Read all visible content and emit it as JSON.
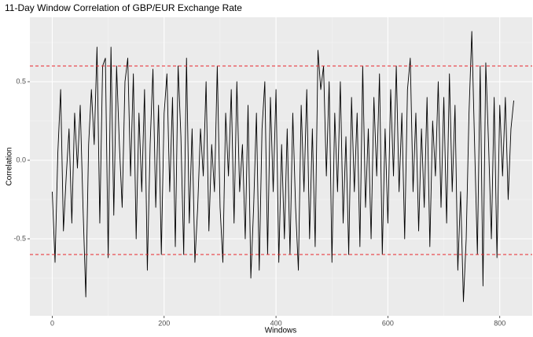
{
  "chart_data": {
    "type": "line",
    "title": "11-Day Window Correlation of GBP/EUR Exchange Rate",
    "x_label": "Windows",
    "y_label": "Correlation",
    "x": [
      0,
      5,
      10,
      15,
      20,
      25,
      30,
      35,
      40,
      45,
      50,
      55,
      60,
      65,
      70,
      75,
      80,
      85,
      90,
      95,
      100,
      105,
      110,
      115,
      120,
      125,
      130,
      135,
      140,
      145,
      150,
      155,
      160,
      165,
      170,
      175,
      180,
      185,
      190,
      195,
      200,
      205,
      210,
      215,
      220,
      225,
      230,
      235,
      240,
      245,
      250,
      255,
      260,
      265,
      270,
      275,
      280,
      285,
      290,
      295,
      300,
      305,
      310,
      315,
      320,
      325,
      330,
      335,
      340,
      345,
      350,
      355,
      360,
      365,
      370,
      375,
      380,
      385,
      390,
      395,
      400,
      405,
      410,
      415,
      420,
      425,
      430,
      435,
      440,
      445,
      450,
      455,
      460,
      465,
      470,
      475,
      480,
      485,
      490,
      495,
      500,
      505,
      510,
      515,
      520,
      525,
      530,
      535,
      540,
      545,
      550,
      555,
      560,
      565,
      570,
      575,
      580,
      585,
      590,
      595,
      600,
      605,
      610,
      615,
      620,
      625,
      630,
      635,
      640,
      645,
      650,
      655,
      660,
      665,
      670,
      675,
      680,
      685,
      690,
      695,
      700,
      705,
      710,
      715,
      720,
      725,
      730,
      735,
      740,
      745,
      750,
      755,
      760,
      765,
      770,
      775,
      780,
      785,
      790,
      795,
      800,
      805,
      810,
      815,
      820,
      825
    ],
    "series": [
      {
        "name": "Correlation",
        "color": "#000000",
        "values": [
          -0.2,
          -0.65,
          0.05,
          0.45,
          -0.45,
          -0.1,
          0.2,
          -0.4,
          0.3,
          -0.05,
          0.35,
          -0.3,
          -0.87,
          0.1,
          0.45,
          0.1,
          0.72,
          -0.4,
          0.6,
          0.65,
          -0.62,
          0.72,
          -0.35,
          0.6,
          0.1,
          -0.3,
          0.5,
          0.65,
          -0.1,
          0.55,
          -0.5,
          0.3,
          -0.2,
          0.45,
          -0.7,
          0.1,
          0.58,
          -0.3,
          0.35,
          -0.6,
          0.3,
          0.55,
          -0.2,
          0.4,
          -0.55,
          0.6,
          0.15,
          -0.6,
          0.65,
          -0.4,
          0.2,
          -0.65,
          -0.3,
          0.2,
          -0.1,
          0.5,
          -0.45,
          0.1,
          -0.2,
          0.6,
          -0.3,
          -0.65,
          0.3,
          -0.1,
          0.45,
          -0.4,
          0.5,
          -0.2,
          0.1,
          -0.5,
          0.35,
          -0.75,
          -0.3,
          0.3,
          -0.7,
          0.2,
          0.5,
          -0.6,
          0.4,
          -0.2,
          0.45,
          -0.65,
          0.1,
          -0.5,
          0.2,
          -0.6,
          0.3,
          -0.3,
          -0.7,
          0.35,
          -0.2,
          0.45,
          -0.5,
          0.2,
          -0.55,
          0.7,
          0.45,
          0.6,
          -0.1,
          0.5,
          -0.65,
          0.3,
          -0.2,
          0.5,
          -0.4,
          0.15,
          -0.6,
          0.4,
          -0.2,
          0.3,
          -0.55,
          0.6,
          -0.3,
          0.2,
          -0.5,
          0.4,
          -0.1,
          0.55,
          -0.6,
          0.2,
          -0.4,
          0.45,
          -0.1,
          0.6,
          -0.2,
          0.3,
          -0.5,
          0.45,
          0.65,
          -0.2,
          0.3,
          -0.45,
          0.2,
          -0.3,
          0.4,
          -0.55,
          0.25,
          -0.1,
          0.5,
          -0.3,
          0.4,
          -0.4,
          0.55,
          -0.2,
          0.35,
          -0.7,
          -0.2,
          -0.9,
          -0.5,
          0.3,
          0.82,
          0.1,
          -0.6,
          0.6,
          -0.8,
          0.62,
          0.1,
          -0.5,
          0.4,
          -0.62,
          0.35,
          -0.1,
          0.4,
          -0.25,
          0.2,
          0.38
        ]
      }
    ],
    "reference_lines": [
      0.6,
      -0.6
    ],
    "reference_color": "#e8262b",
    "xlim": [
      -40,
      858
    ],
    "ylim": [
      -0.99,
      0.91
    ],
    "xticks": [
      0,
      200,
      400,
      600,
      800
    ],
    "yticks": [
      -0.5,
      {
        "value": 0,
        "label": "0.0"
      },
      0.5
    ],
    "xminor": [
      100,
      300,
      500,
      700
    ],
    "yminor": [
      -0.75,
      -0.25,
      0.25,
      0.75
    ],
    "grid": true
  }
}
